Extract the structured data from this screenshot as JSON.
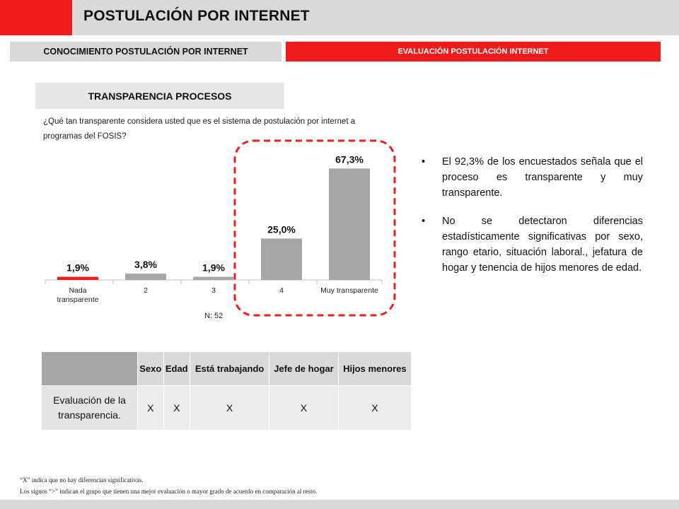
{
  "header": {
    "title": "POSTULACIÓN POR INTERNET"
  },
  "tabs": [
    {
      "label": "CONOCIMIENTO POSTULACIÓN POR INTERNET"
    },
    {
      "label": "EVALUACIÓN POSTULACIÓN INTERNET"
    }
  ],
  "section": {
    "title": "TRANSPARENCIA PROCESOS",
    "question": "¿Qué tan transparente considera usted que es el sistema de postulación por internet a programas del FOSIS?"
  },
  "chart_data": {
    "type": "bar",
    "categories": [
      "Nada transparente",
      "2",
      "3",
      "4",
      "Muy transparente"
    ],
    "values": [
      1.9,
      3.8,
      1.9,
      25.0,
      67.3
    ],
    "value_labels": [
      "1,9%",
      "3,8%",
      "1,9%",
      "25,0%",
      "67,3%"
    ],
    "bar_colors": [
      "#ee1c1c",
      "#a6a6a6",
      "#a6a6a6",
      "#a6a6a6",
      "#a6a6a6"
    ],
    "highlight": {
      "categories": [
        "4",
        "Muy transparente"
      ],
      "style": "red dashed rounded box"
    },
    "title": "",
    "xlabel": "",
    "ylabel": "",
    "ylim": [
      0,
      70
    ],
    "grid": false,
    "legend": "none",
    "note": "N: 52"
  },
  "bullets": [
    "El 92,3% de los encuestados señala que el proceso es transparente y muy transparente.",
    "No se detectaron diferencias estadísticamente significativas por sexo, rango etario, situación laboral., jefatura de hogar y tenencia de hijos menores de edad."
  ],
  "table": {
    "headers": [
      "",
      "Sexo",
      "Edad",
      "Está trabajando",
      "Jefe de hogar",
      "Hijos menores"
    ],
    "rows": [
      {
        "label": "Evaluación de la transparencia.",
        "cells": [
          "X",
          "X",
          "X",
          "X",
          "X"
        ]
      }
    ]
  },
  "footnotes": [
    "“X” indica que no hay diferencias significativas.",
    "Los signos “>” indican el grupo que tienen una mejor evaluación o mayor grado de acuerdo en comparación al resto."
  ],
  "colors": {
    "accent": "#ee1c1c",
    "gray": "#d9d9d9",
    "bar": "#a6a6a6"
  }
}
